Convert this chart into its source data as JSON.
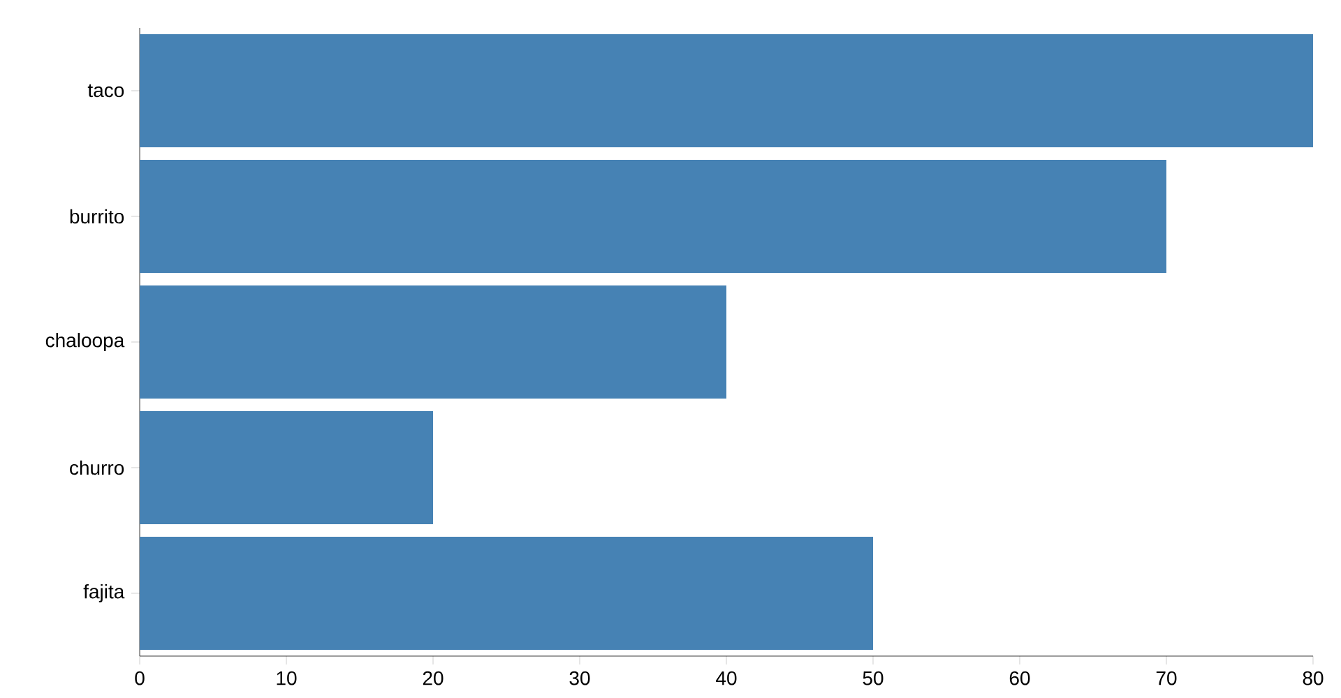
{
  "chart_data": {
    "type": "bar",
    "orientation": "horizontal",
    "categories": [
      "taco",
      "burrito",
      "chaloopa",
      "churro",
      "fajita"
    ],
    "values": [
      80,
      70,
      40,
      20,
      50
    ],
    "color": "#4682b4",
    "xlim": [
      0,
      80
    ],
    "xticks": [
      0,
      10,
      20,
      30,
      40,
      50,
      60,
      70,
      80
    ]
  }
}
